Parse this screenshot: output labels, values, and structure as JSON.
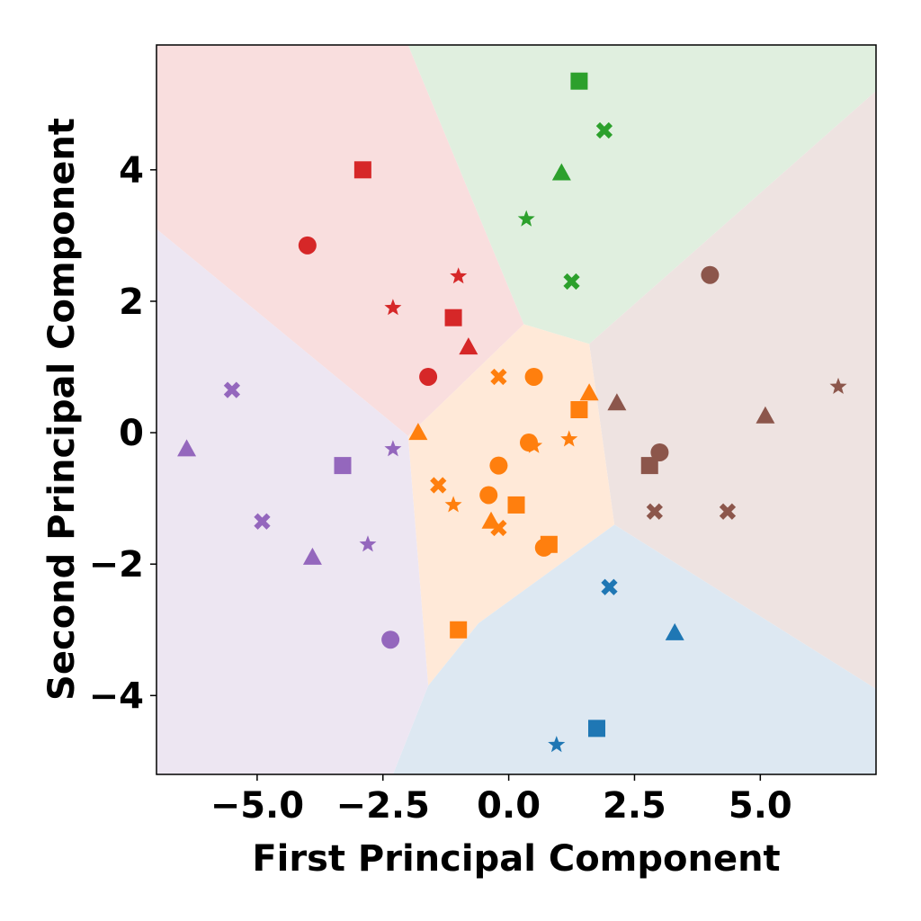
{
  "chart_data": {
    "type": "scatter",
    "xlabel": "First Principal Component",
    "ylabel": "Second Principal Component",
    "xlim": [
      -7.0,
      7.3
    ],
    "ylim": [
      -5.2,
      5.9
    ],
    "x_ticks": [
      -5.0,
      -2.5,
      0.0,
      2.5,
      5.0
    ],
    "x_tick_labels": [
      "−5.0",
      "−2.5",
      "0.0",
      "2.5",
      "5.0"
    ],
    "y_ticks": [
      -4,
      -2,
      0,
      2,
      4
    ],
    "y_tick_labels": [
      "−4",
      "−2",
      "0",
      "2",
      "4"
    ],
    "grid": false,
    "legend": "none",
    "regions": [
      {
        "color": "#f9dede",
        "polygon": [
          [
            -7.0,
            5.9
          ],
          [
            -2.0,
            5.9
          ],
          [
            0.3,
            1.65
          ],
          [
            -2.0,
            -0.05
          ],
          [
            -7.0,
            3.1
          ]
        ]
      },
      {
        "color": "#e0efdf",
        "polygon": [
          [
            -2.0,
            5.9
          ],
          [
            7.3,
            5.9
          ],
          [
            7.3,
            5.2
          ],
          [
            1.6,
            1.35
          ],
          [
            0.3,
            1.65
          ]
        ]
      },
      {
        "color": "#eee3e1",
        "polygon": [
          [
            1.6,
            1.35
          ],
          [
            7.3,
            5.2
          ],
          [
            7.3,
            -3.9
          ],
          [
            2.1,
            -1.4
          ]
        ]
      },
      {
        "color": "#ffe9d8",
        "polygon": [
          [
            -2.0,
            -0.05
          ],
          [
            0.3,
            1.65
          ],
          [
            1.6,
            1.35
          ],
          [
            2.1,
            -1.4
          ],
          [
            -0.6,
            -2.9
          ],
          [
            -1.6,
            -3.85
          ]
        ]
      },
      {
        "color": "#dde8f2",
        "polygon": [
          [
            -1.6,
            -3.85
          ],
          [
            -0.6,
            -2.9
          ],
          [
            2.1,
            -1.4
          ],
          [
            7.3,
            -3.9
          ],
          [
            7.3,
            -5.2
          ],
          [
            -2.3,
            -5.2
          ]
        ]
      },
      {
        "color": "#ede6f2",
        "polygon": [
          [
            -7.0,
            3.1
          ],
          [
            -2.0,
            -0.05
          ],
          [
            -1.6,
            -3.85
          ],
          [
            -2.3,
            -5.2
          ],
          [
            -7.0,
            -5.2
          ]
        ]
      }
    ],
    "series": [
      {
        "color": "#d62728",
        "points": [
          {
            "x": -2.9,
            "y": 4.0,
            "marker": "square"
          },
          {
            "x": -4.0,
            "y": 2.85,
            "marker": "circle"
          },
          {
            "x": -1.0,
            "y": 2.38,
            "marker": "star"
          },
          {
            "x": -2.3,
            "y": 1.9,
            "marker": "star"
          },
          {
            "x": -1.1,
            "y": 1.75,
            "marker": "square"
          },
          {
            "x": -0.8,
            "y": 1.3,
            "marker": "triangle"
          },
          {
            "x": -1.6,
            "y": 0.85,
            "marker": "circle"
          }
        ]
      },
      {
        "color": "#2ca02c",
        "points": [
          {
            "x": 1.4,
            "y": 5.35,
            "marker": "square"
          },
          {
            "x": 1.9,
            "y": 4.6,
            "marker": "cross"
          },
          {
            "x": 1.05,
            "y": 3.95,
            "marker": "triangle"
          },
          {
            "x": 0.35,
            "y": 3.25,
            "marker": "star"
          },
          {
            "x": 1.25,
            "y": 2.3,
            "marker": "cross"
          }
        ]
      },
      {
        "color": "#8c564b",
        "points": [
          {
            "x": 4.0,
            "y": 2.4,
            "marker": "circle"
          },
          {
            "x": 6.55,
            "y": 0.7,
            "marker": "star"
          },
          {
            "x": 2.15,
            "y": 0.45,
            "marker": "triangle"
          },
          {
            "x": 5.1,
            "y": 0.25,
            "marker": "triangle"
          },
          {
            "x": 3.0,
            "y": -0.3,
            "marker": "circle"
          },
          {
            "x": 2.8,
            "y": -0.5,
            "marker": "square"
          },
          {
            "x": 2.9,
            "y": -1.2,
            "marker": "cross"
          },
          {
            "x": 4.35,
            "y": -1.2,
            "marker": "cross"
          }
        ]
      },
      {
        "color": "#ff7f0e",
        "points": [
          {
            "x": -0.2,
            "y": 0.85,
            "marker": "cross"
          },
          {
            "x": 0.5,
            "y": 0.85,
            "marker": "circle"
          },
          {
            "x": 1.6,
            "y": 0.6,
            "marker": "triangle"
          },
          {
            "x": 1.4,
            "y": 0.35,
            "marker": "square"
          },
          {
            "x": -1.8,
            "y": 0.0,
            "marker": "triangle"
          },
          {
            "x": 1.2,
            "y": -0.1,
            "marker": "star"
          },
          {
            "x": 0.4,
            "y": -0.15,
            "marker": "circle"
          },
          {
            "x": 0.5,
            "y": -0.2,
            "marker": "star"
          },
          {
            "x": -0.2,
            "y": -0.5,
            "marker": "circle"
          },
          {
            "x": -1.4,
            "y": -0.8,
            "marker": "cross"
          },
          {
            "x": -0.4,
            "y": -0.95,
            "marker": "circle"
          },
          {
            "x": -1.1,
            "y": -1.1,
            "marker": "star"
          },
          {
            "x": 0.15,
            "y": -1.1,
            "marker": "square"
          },
          {
            "x": -0.35,
            "y": -1.35,
            "marker": "triangle"
          },
          {
            "x": -0.2,
            "y": -1.45,
            "marker": "cross"
          },
          {
            "x": 0.8,
            "y": -1.7,
            "marker": "square"
          },
          {
            "x": 0.7,
            "y": -1.75,
            "marker": "circle"
          },
          {
            "x": -1.0,
            "y": -3.0,
            "marker": "square"
          }
        ]
      },
      {
        "color": "#9467bd",
        "points": [
          {
            "x": -5.5,
            "y": 0.65,
            "marker": "cross"
          },
          {
            "x": -6.4,
            "y": -0.25,
            "marker": "triangle"
          },
          {
            "x": -2.3,
            "y": -0.25,
            "marker": "star"
          },
          {
            "x": -3.3,
            "y": -0.5,
            "marker": "square"
          },
          {
            "x": -4.9,
            "y": -1.35,
            "marker": "cross"
          },
          {
            "x": -2.8,
            "y": -1.7,
            "marker": "star"
          },
          {
            "x": -3.9,
            "y": -1.9,
            "marker": "triangle"
          },
          {
            "x": -2.35,
            "y": -3.15,
            "marker": "circle"
          }
        ]
      },
      {
        "color": "#1f77b4",
        "points": [
          {
            "x": 2.0,
            "y": -2.35,
            "marker": "cross"
          },
          {
            "x": 3.3,
            "y": -3.05,
            "marker": "triangle"
          },
          {
            "x": 1.75,
            "y": -4.5,
            "marker": "square"
          },
          {
            "x": 0.95,
            "y": -4.75,
            "marker": "star"
          }
        ]
      }
    ]
  }
}
